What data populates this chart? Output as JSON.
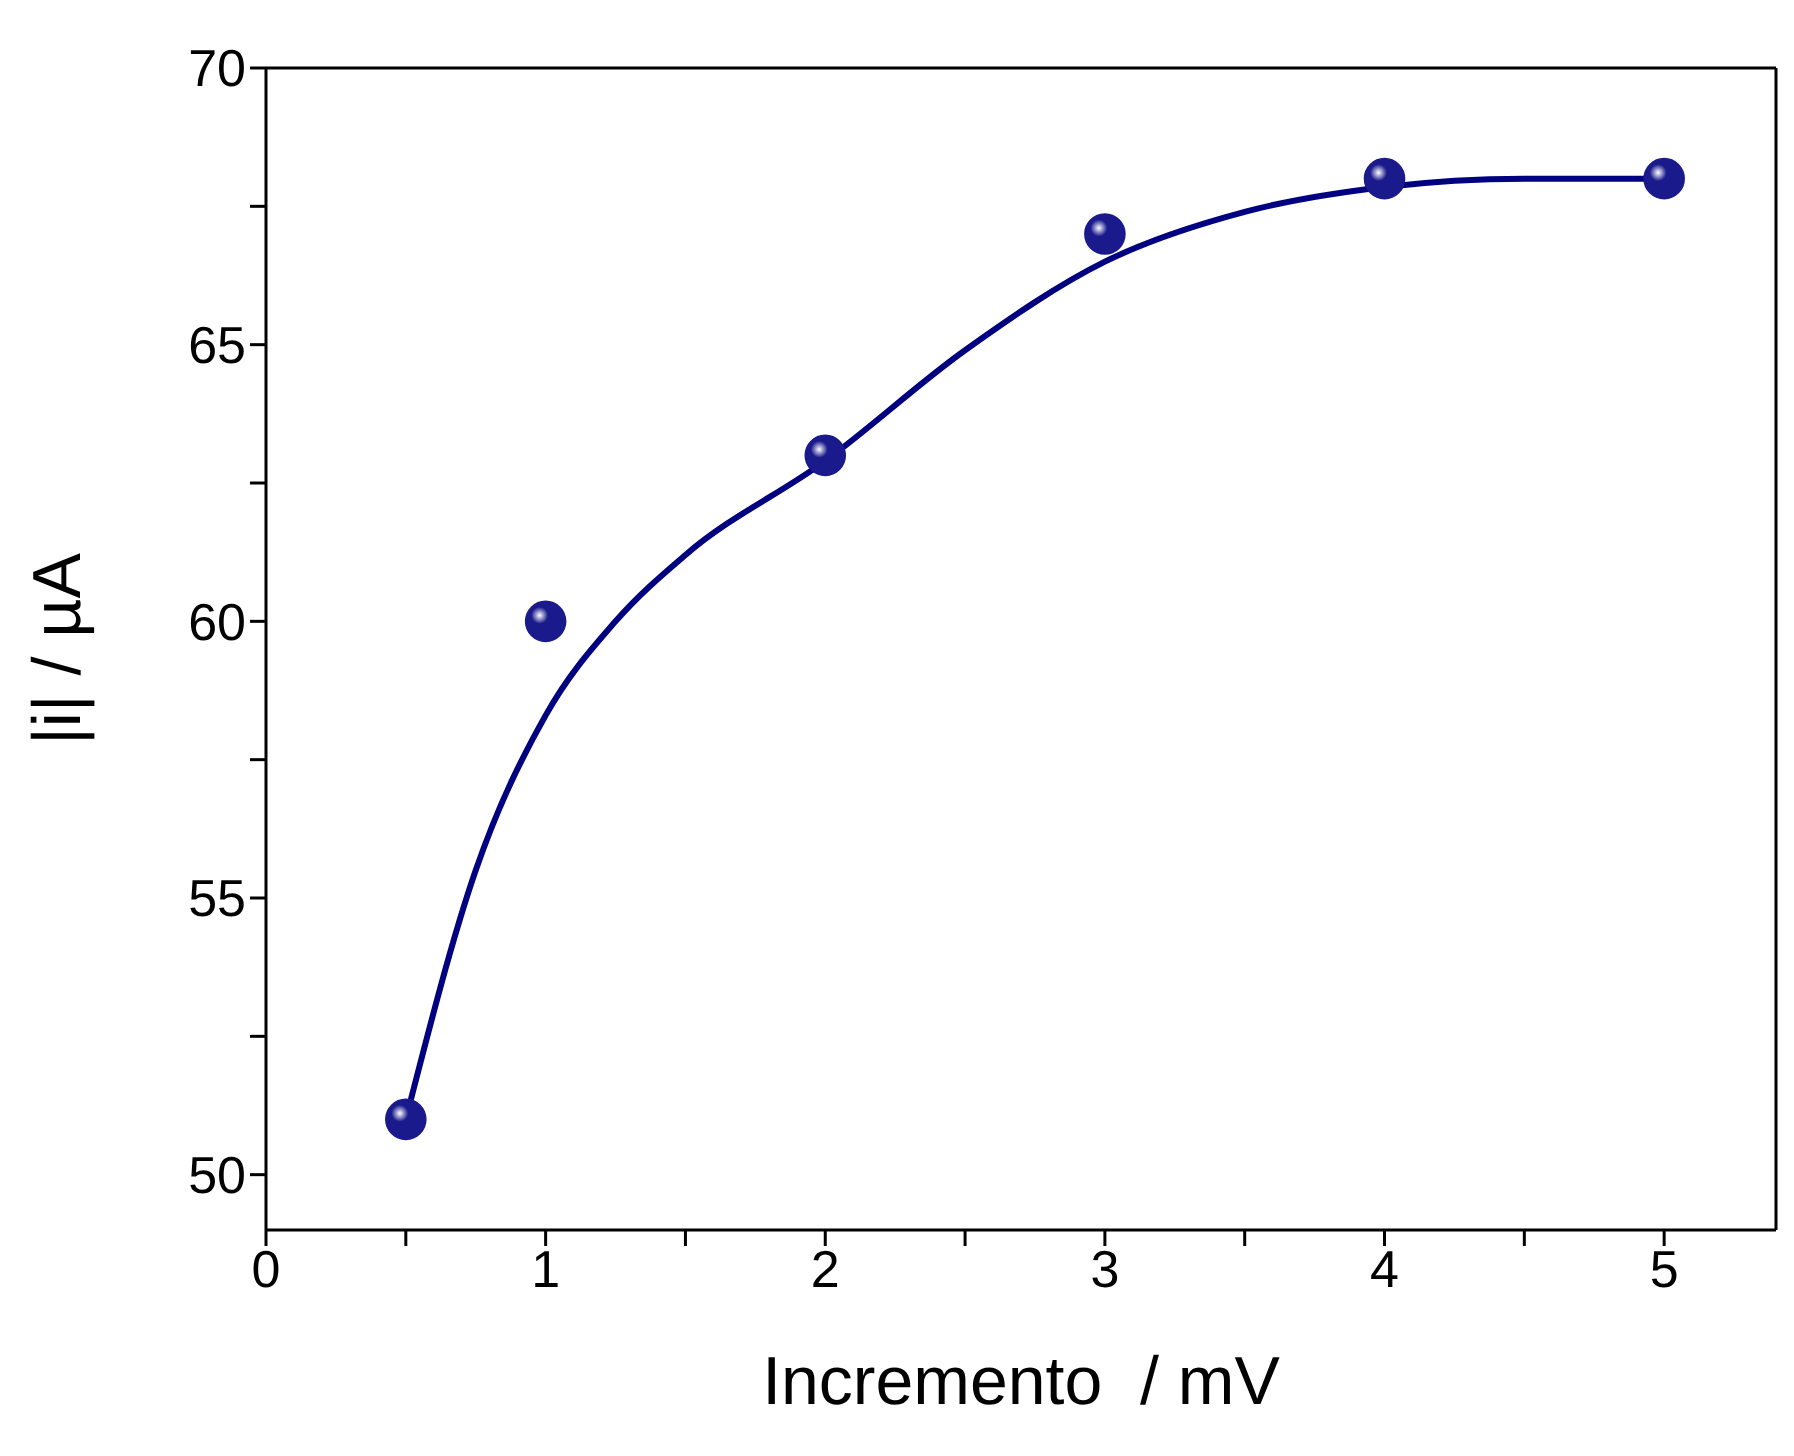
{
  "chart_data": {
    "type": "scatter",
    "xlabel": "Incremento  / mV",
    "ylabel": "|i| / µA",
    "xlim": [
      0,
      5.4
    ],
    "ylim": [
      49,
      70
    ],
    "xticks": [
      0,
      {
        "value": 0.5,
        "label": null
      },
      1,
      {
        "value": 1.5,
        "label": null
      },
      2,
      {
        "value": 2.5,
        "label": null
      },
      3,
      {
        "value": 3.5,
        "label": null
      },
      4,
      {
        "value": 4.5,
        "label": null
      },
      5
    ],
    "yticks": [
      50,
      {
        "value": 52.5,
        "label": null
      },
      55,
      {
        "value": 57.5,
        "label": null
      },
      60,
      {
        "value": 62.5,
        "label": null
      },
      65,
      {
        "value": 67.5,
        "label": null
      },
      70
    ],
    "marker": "circle",
    "grid": false,
    "legend": false,
    "series": [
      {
        "color": "#1a1a8c",
        "x": [
          0.5,
          1,
          2,
          3,
          4,
          5
        ],
        "values": [
          51,
          60,
          63,
          67,
          68,
          68
        ]
      },
      {
        "type": "line",
        "color": "#000080",
        "line_style": "solid",
        "marker": "none",
        "x": [
          0.5,
          0.75,
          1,
          1.25,
          1.5,
          2,
          2.5,
          3,
          3.5,
          4,
          4.5,
          5
        ],
        "values": [
          51,
          55.5,
          58.3,
          60,
          61.2,
          62.9,
          64.9,
          66.5,
          67.4,
          67.85,
          68,
          68
        ]
      }
    ]
  }
}
